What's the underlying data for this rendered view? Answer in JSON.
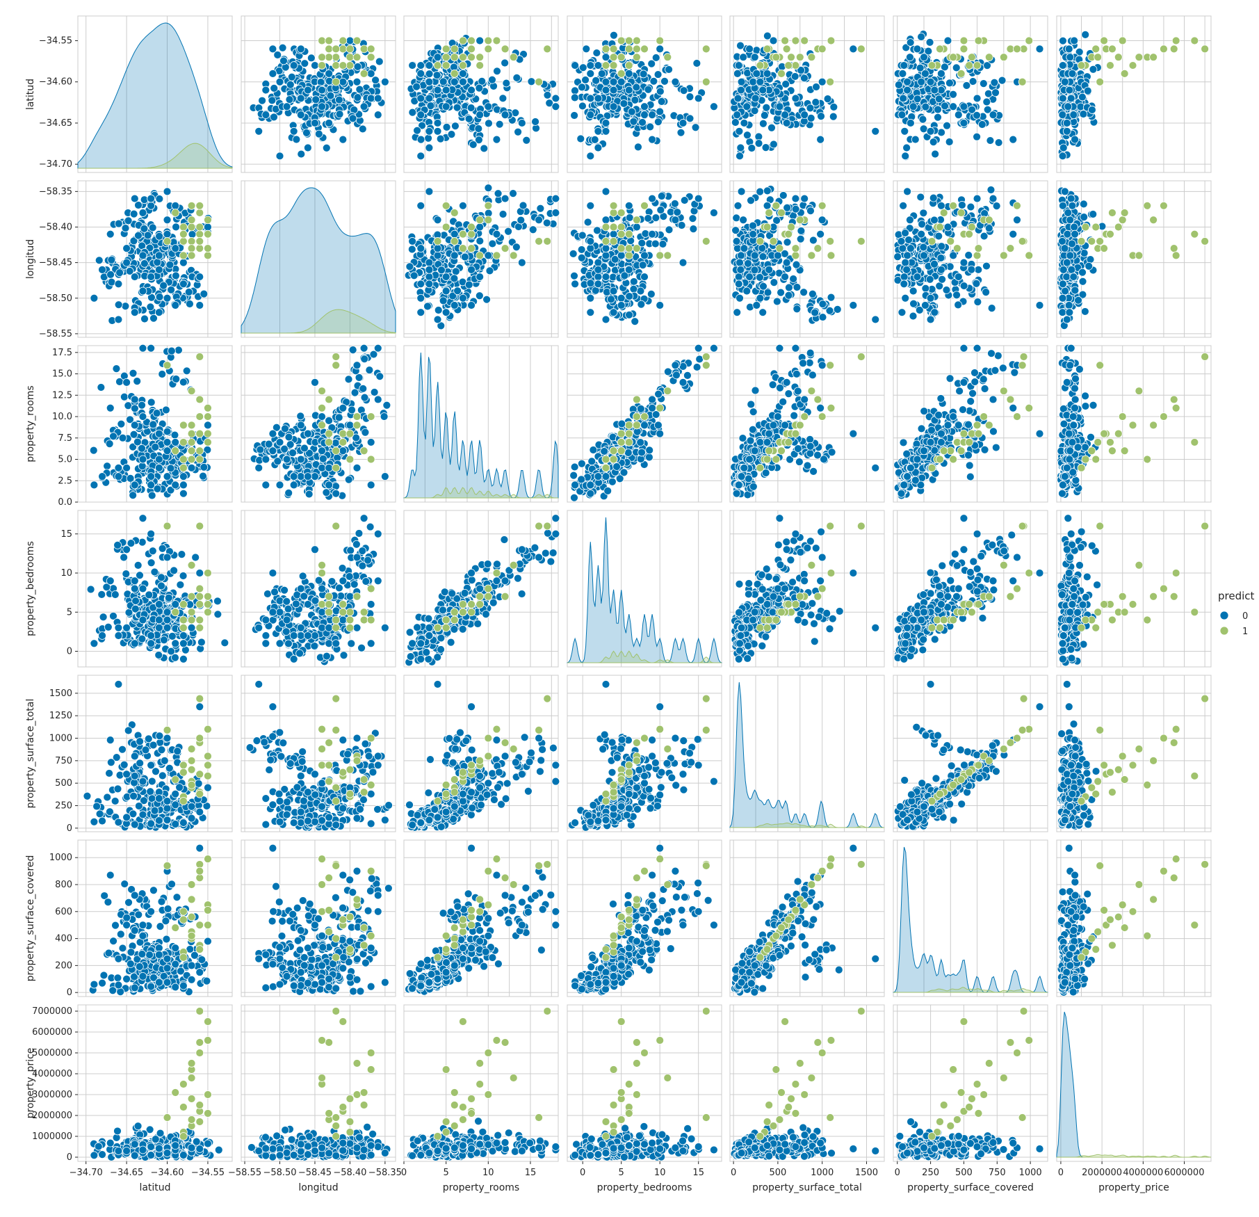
{
  "chart_data": {
    "type": "scatter",
    "kind": "pairplot",
    "variables": [
      "latitud",
      "longitud",
      "property_rooms",
      "property_bedrooms",
      "property_surface_total",
      "property_surface_covered",
      "property_price"
    ],
    "axes": [
      {
        "name": "latitud",
        "lim": [
          -34.71,
          -34.52
        ],
        "ticks": [
          -34.7,
          -34.65,
          -34.6,
          -34.55
        ],
        "tick_labels": [
          "−34.70",
          "−34.65",
          "−34.60",
          "−34.55"
        ]
      },
      {
        "name": "longitud",
        "lim": [
          -58.555,
          -58.335
        ],
        "ticks": [
          -58.55,
          -58.5,
          -58.45,
          -58.4,
          -58.35
        ],
        "tick_labels": [
          "−58.55",
          "−58.50",
          "−58.45",
          "−58.40",
          "−58.35"
        ]
      },
      {
        "name": "property_rooms",
        "lim": [
          0,
          18.3
        ],
        "ticks": [
          0,
          2.5,
          5,
          7.5,
          10,
          12.5,
          15,
          17.5
        ],
        "ticks_lower": [
          0,
          5,
          10,
          15
        ],
        "tick_labels": [
          "0.0",
          "2.5",
          "5.0",
          "7.5",
          "10.0",
          "12.5",
          "15.0",
          "17.5"
        ],
        "tick_labels_lower": [
          "0",
          "5",
          "10",
          "15"
        ]
      },
      {
        "name": "property_bedrooms",
        "lim": [
          -2,
          18
        ],
        "ticks": [
          0,
          5,
          10,
          15
        ],
        "tick_labels": [
          "0",
          "5",
          "10",
          "15"
        ]
      },
      {
        "name": "property_surface_total",
        "lim": [
          -40,
          1700
        ],
        "ticks": [
          0,
          250,
          500,
          750,
          1000,
          1250,
          1500
        ],
        "ticks_lower": [
          0,
          500,
          1000,
          1500
        ],
        "tick_labels": [
          "0",
          "250",
          "500",
          "750",
          "1000",
          "1250",
          "1500"
        ],
        "tick_labels_lower": [
          "0",
          "500",
          "1000",
          "1500"
        ]
      },
      {
        "name": "property_surface_covered",
        "lim": [
          -30,
          1130
        ],
        "ticks": [
          0,
          200,
          400,
          600,
          800,
          1000
        ],
        "ticks_lower": [
          0,
          250,
          500,
          750,
          1000
        ],
        "tick_labels": [
          "0",
          "200",
          "400",
          "600",
          "800",
          "1000"
        ],
        "tick_labels_lower": [
          "0",
          "250",
          "500",
          "750",
          "1000"
        ]
      },
      {
        "name": "property_price",
        "lim": [
          -200000,
          7300000
        ],
        "ticks": [
          0,
          1000000,
          2000000,
          3000000,
          4000000,
          5000000,
          6000000,
          7000000
        ],
        "ticks_lower": [
          0,
          2000000,
          4000000,
          6000000
        ],
        "tick_labels": [
          "0",
          "1000000",
          "2000000",
          "3000000",
          "4000000",
          "5000000",
          "6000000",
          "7000000"
        ],
        "tick_labels_lower": [
          "0",
          "2000000",
          "4000000",
          "6000000"
        ]
      }
    ],
    "legend": {
      "title": "predict",
      "placement": "right",
      "entries": [
        {
          "label": "0",
          "color": "#0173b2"
        },
        {
          "label": "1",
          "color": "#a0c26d"
        }
      ]
    },
    "series": [
      {
        "name": "0",
        "color": "#0173b2",
        "points": [
          [
            -34.62,
            -58.47,
            3,
            2,
            60,
            52,
            120000
          ],
          [
            -34.61,
            -58.44,
            4,
            3,
            85,
            75,
            160000
          ],
          [
            -34.59,
            -58.43,
            2,
            1,
            45,
            40,
            95000
          ],
          [
            -34.63,
            -58.49,
            5,
            4,
            150,
            120,
            210000
          ],
          [
            -34.58,
            -58.45,
            3,
            2,
            70,
            60,
            150000
          ],
          [
            -34.6,
            -58.41,
            6,
            4,
            220,
            180,
            320000
          ],
          [
            -34.64,
            -58.52,
            2,
            1,
            40,
            35,
            80000
          ],
          [
            -34.57,
            -58.39,
            4,
            3,
            110,
            95,
            240000
          ],
          [
            -34.6,
            -58.5,
            7,
            5,
            300,
            250,
            380000
          ],
          [
            -34.66,
            -58.48,
            3,
            2,
            65,
            55,
            110000
          ],
          [
            -34.61,
            -58.46,
            8,
            6,
            400,
            330,
            520000
          ],
          [
            -34.58,
            -58.42,
            1,
            1,
            35,
            30,
            70000
          ],
          [
            -34.63,
            -58.44,
            10,
            8,
            500,
            420,
            600000
          ],
          [
            -34.56,
            -58.47,
            5,
            3,
            180,
            150,
            280000
          ],
          [
            -34.65,
            -58.43,
            4,
            3,
            120,
            100,
            190000
          ],
          [
            -34.62,
            -58.37,
            2,
            1,
            50,
            44,
            100000
          ],
          [
            -34.59,
            -58.51,
            6,
            5,
            260,
            210,
            350000
          ],
          [
            -34.68,
            -58.46,
            3,
            2,
            80,
            70,
            130000
          ],
          [
            -34.55,
            -58.4,
            9,
            7,
            450,
            380,
            650000
          ],
          [
            -34.64,
            -58.36,
            12,
            9,
            800,
            720,
            700000
          ],
          [
            -34.65,
            -58.45,
            14,
            13,
            600,
            500,
            300000
          ],
          [
            -34.69,
            -58.5,
            2,
            1,
            70,
            60,
            90000
          ],
          [
            -34.6,
            -58.39,
            16,
            12,
            1000,
            900,
            450000
          ],
          [
            -34.63,
            -58.38,
            18,
            17,
            520,
            500,
            350000
          ],
          [
            -34.56,
            -58.51,
            8,
            10,
            1350,
            1070,
            400000
          ],
          [
            -34.66,
            -58.53,
            4,
            3,
            1600,
            250,
            300000
          ],
          [
            -34.58,
            -58.48,
            2,
            -1,
            60,
            50,
            100000
          ],
          [
            -34.62,
            -58.36,
            18,
            15,
            700,
            600,
            500000
          ],
          [
            -34.67,
            -58.41,
            11,
            9,
            980,
            870,
            680000
          ],
          [
            -34.61,
            -58.52,
            5,
            4,
            330,
            280,
            420000
          ],
          [
            -34.59,
            -58.37,
            7,
            6,
            380,
            330,
            560000
          ],
          [
            -34.64,
            -58.47,
            9,
            8,
            580,
            460,
            620000
          ],
          [
            -34.6,
            -58.35,
            3,
            3,
            90,
            75,
            200000
          ],
          [
            -34.57,
            -58.44,
            6,
            5,
            240,
            200,
            450000
          ]
        ]
      },
      {
        "name": "1",
        "color": "#a0c26d",
        "points": [
          [
            -34.57,
            -58.42,
            6,
            4,
            450,
            400,
            1500000
          ],
          [
            -34.56,
            -58.41,
            8,
            6,
            600,
            500,
            2200000
          ],
          [
            -34.58,
            -58.4,
            5,
            4,
            350,
            300,
            1200000
          ],
          [
            -34.57,
            -58.43,
            7,
            5,
            520,
            450,
            1800000
          ],
          [
            -34.55,
            -58.39,
            10,
            7,
            800,
            650,
            3000000
          ],
          [
            -34.56,
            -58.38,
            6,
            4,
            400,
            350,
            2500000
          ],
          [
            -34.58,
            -58.44,
            9,
            6,
            700,
            600,
            3500000
          ],
          [
            -34.57,
            -58.37,
            5,
            4,
            480,
            420,
            4200000
          ],
          [
            -34.56,
            -58.43,
            12,
            7,
            950,
            850,
            5500000
          ],
          [
            -34.58,
            -58.42,
            4,
            3,
            300,
            260,
            1000000
          ],
          [
            -34.57,
            -58.4,
            8,
            5,
            650,
            560,
            2800000
          ],
          [
            -34.55,
            -58.41,
            7,
            5,
            580,
            500,
            6500000
          ],
          [
            -34.56,
            -58.42,
            17,
            16,
            1440,
            950,
            7000000
          ],
          [
            -34.55,
            -58.44,
            11,
            10,
            1100,
            990,
            5600000
          ],
          [
            -34.59,
            -58.38,
            6,
            5,
            540,
            480,
            3100000
          ],
          [
            -34.57,
            -58.39,
            9,
            7,
            750,
            690,
            4500000
          ],
          [
            -34.56,
            -58.4,
            5,
            3,
            380,
            320,
            1700000
          ],
          [
            -34.58,
            -58.41,
            7,
            6,
            620,
            540,
            2400000
          ],
          [
            -34.57,
            -58.44,
            13,
            11,
            880,
            800,
            3800000
          ],
          [
            -34.56,
            -58.37,
            10,
            8,
            1000,
            900,
            5000000
          ],
          [
            -34.6,
            -58.42,
            16,
            16,
            1090,
            940,
            1900000
          ],
          [
            -34.55,
            -58.43,
            8,
            6,
            700,
            610,
            2100000
          ]
        ]
      }
    ]
  }
}
